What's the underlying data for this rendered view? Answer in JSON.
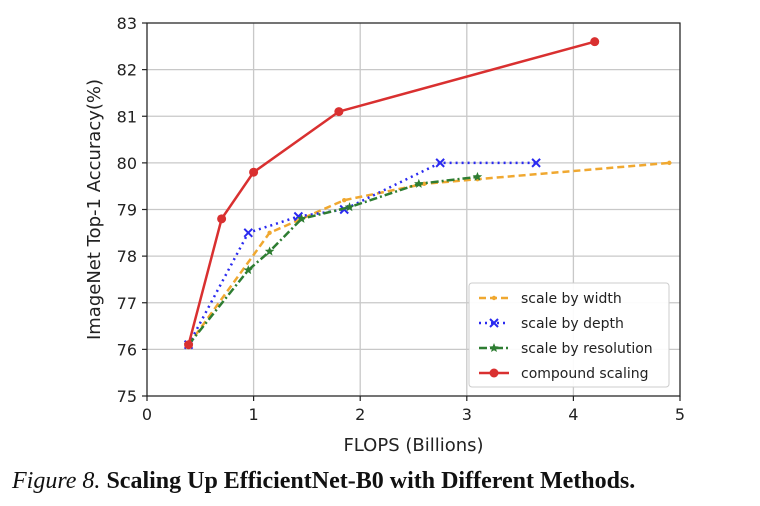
{
  "chart_data": {
    "type": "line",
    "xlabel": "FLOPS (Billions)",
    "ylabel": "ImageNet Top-1 Accuracy(%)",
    "xlim": [
      0,
      5
    ],
    "ylim": [
      75,
      83
    ],
    "xticks": [
      0,
      1,
      2,
      3,
      4,
      5
    ],
    "yticks": [
      75,
      76,
      77,
      78,
      79,
      80,
      81,
      82,
      83
    ],
    "grid": true,
    "legend_position": "bottom-right",
    "series": [
      {
        "name": "scale by width",
        "color": "#f0a830",
        "line_style": "dashed",
        "marker": "dot",
        "x": [
          0.39,
          1.15,
          1.85,
          2.6,
          3.1,
          4.9
        ],
        "y": [
          76.1,
          78.5,
          79.2,
          79.55,
          79.65,
          80.0
        ]
      },
      {
        "name": "scale by depth",
        "color": "#2a2af0",
        "line_style": "dotted",
        "marker": "x",
        "x": [
          0.39,
          0.95,
          1.42,
          1.85,
          2.75,
          3.65
        ],
        "y": [
          76.1,
          78.5,
          78.85,
          79.0,
          80.0,
          80.0
        ]
      },
      {
        "name": "scale by resolution",
        "color": "#2e7d32",
        "line_style": "dashdot",
        "marker": "star",
        "x": [
          0.39,
          0.95,
          1.15,
          1.45,
          1.9,
          2.55,
          3.1
        ],
        "y": [
          76.1,
          77.7,
          78.1,
          78.8,
          79.05,
          79.55,
          79.7
        ]
      },
      {
        "name": "compound scaling",
        "color": "#d93030",
        "line_style": "solid",
        "marker": "circle",
        "x": [
          0.39,
          0.7,
          1.0,
          1.8,
          4.2
        ],
        "y": [
          76.1,
          78.8,
          79.8,
          81.1,
          82.6
        ]
      }
    ]
  },
  "caption": {
    "label": "Figure 8.",
    "title": "Scaling Up EfficientNet-B0 with Different Methods."
  }
}
